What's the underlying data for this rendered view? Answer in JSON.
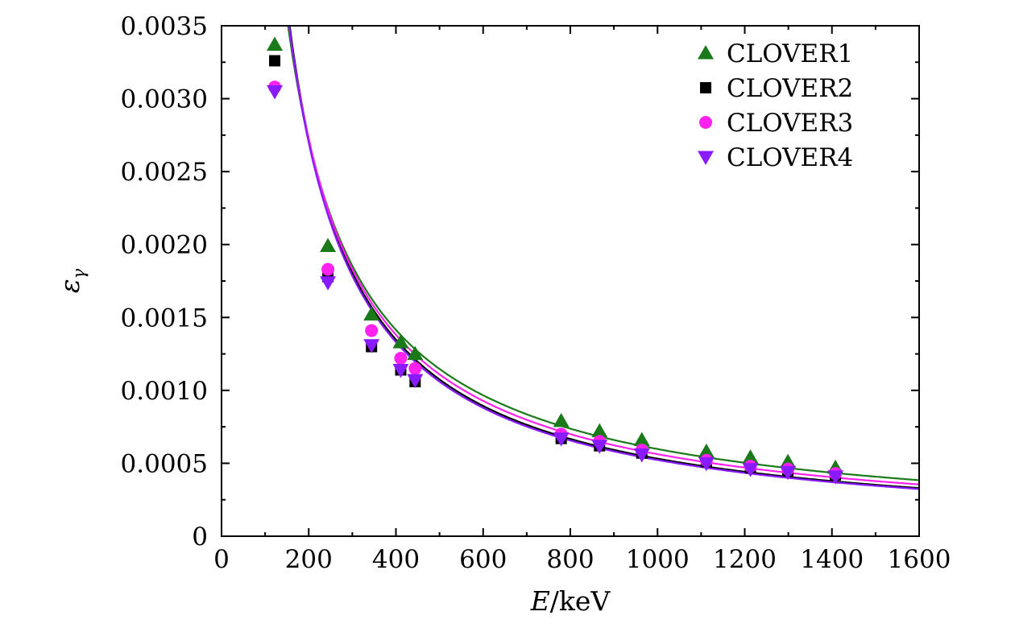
{
  "chart_data": {
    "type": "scatter",
    "title": "",
    "xlabel_var": "E",
    "xlabel_unit": "keV",
    "ylabel_var": "ε",
    "ylabel_sub": "γ",
    "xlim": [
      0,
      1600
    ],
    "ylim": [
      0,
      0.0035
    ],
    "xticks": [
      0,
      200,
      400,
      600,
      800,
      1000,
      1200,
      1400,
      1600
    ],
    "xtick_labels": [
      "0",
      "200",
      "400",
      "600",
      "800",
      "1000",
      "1200",
      "1400",
      "1600"
    ],
    "yticks": [
      0,
      0.0005,
      0.001,
      0.0015,
      0.002,
      0.0025,
      0.003,
      0.0035
    ],
    "ytick_labels": [
      "0",
      "0.0005",
      "0.0010",
      "0.0015",
      "0.0020",
      "0.0025",
      "0.0030",
      "0.0035"
    ],
    "legend_position": "top-right",
    "x": [
      122,
      244,
      344,
      411,
      444,
      779,
      867,
      964,
      1112,
      1213,
      1299,
      1408
    ],
    "series": [
      {
        "name": "CLOVER1",
        "marker": "triangle-up",
        "color": "#1a7a1a",
        "values": [
          0.00337,
          0.00199,
          0.00152,
          0.00133,
          0.00125,
          0.00079,
          0.00072,
          0.00066,
          0.00058,
          0.00054,
          0.00051,
          0.00047
        ],
        "fit": {
          "a": 0.395,
          "b": 0.94
        }
      },
      {
        "name": "CLOVER2",
        "marker": "square",
        "color": "#000000",
        "values": [
          0.00326,
          0.00178,
          0.0013,
          0.00114,
          0.00106,
          0.00067,
          0.00062,
          0.00057,
          0.00051,
          0.00047,
          0.00045,
          0.00042
        ],
        "fit": {
          "a": 0.59,
          "b": 1.015
        }
      },
      {
        "name": "CLOVER3",
        "marker": "circle",
        "color": "#ff22ee",
        "values": [
          0.00308,
          0.00183,
          0.00141,
          0.00122,
          0.00115,
          0.0007,
          0.00065,
          0.00059,
          0.00052,
          0.00048,
          0.00046,
          0.00043
        ],
        "fit": {
          "a": 0.49,
          "b": 0.98
        }
      },
      {
        "name": "CLOVER4",
        "marker": "triangle-down",
        "color": "#8a1aff",
        "values": [
          0.00305,
          0.00174,
          0.00131,
          0.00114,
          0.00107,
          0.00067,
          0.00062,
          0.00056,
          0.0005,
          0.00046,
          0.00044,
          0.00041
        ],
        "fit": {
          "a": 0.6,
          "b": 1.02
        }
      }
    ]
  }
}
